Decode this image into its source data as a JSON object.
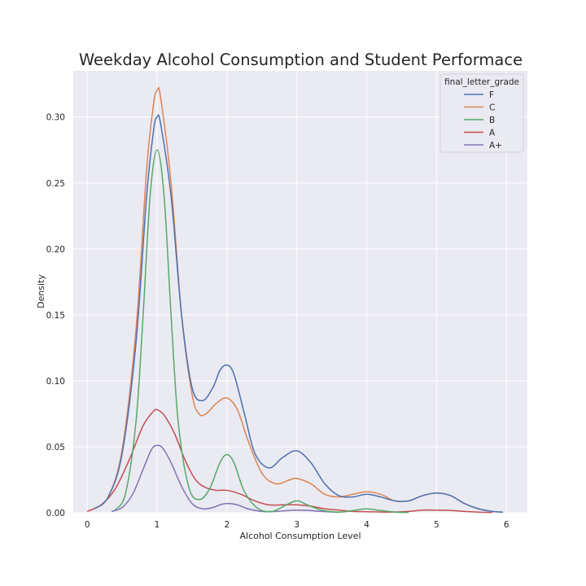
{
  "chart_data": {
    "type": "line",
    "title": "Weekday Alcohol Consumption and Student Performace",
    "xlabel": "Alcohol Consumption Level",
    "ylabel": "Density",
    "xlim": [
      -0.2,
      6.3
    ],
    "ylim": [
      0,
      0.335
    ],
    "x_ticks": [
      "0",
      "1",
      "2",
      "3",
      "4",
      "5",
      "6"
    ],
    "y_ticks": [
      "0.00",
      "0.05",
      "0.10",
      "0.15",
      "0.20",
      "0.25",
      "0.30"
    ],
    "grid": true,
    "legend": {
      "title": "final_letter_grade",
      "placement": "top-right"
    },
    "series": [
      {
        "name": "F",
        "color": "#4c72b0",
        "points": [
          [
            0.1,
            0.003
          ],
          [
            0.3,
            0.012
          ],
          [
            0.5,
            0.045
          ],
          [
            0.7,
            0.13
          ],
          [
            0.85,
            0.24
          ],
          [
            0.95,
            0.29
          ],
          [
            1.0,
            0.3
          ],
          [
            1.05,
            0.295
          ],
          [
            1.2,
            0.24
          ],
          [
            1.35,
            0.15
          ],
          [
            1.5,
            0.095
          ],
          [
            1.65,
            0.085
          ],
          [
            1.8,
            0.095
          ],
          [
            1.9,
            0.108
          ],
          [
            2.0,
            0.112
          ],
          [
            2.1,
            0.105
          ],
          [
            2.25,
            0.075
          ],
          [
            2.4,
            0.045
          ],
          [
            2.6,
            0.034
          ],
          [
            2.8,
            0.042
          ],
          [
            3.0,
            0.047
          ],
          [
            3.2,
            0.038
          ],
          [
            3.4,
            0.022
          ],
          [
            3.6,
            0.013
          ],
          [
            3.8,
            0.012
          ],
          [
            4.0,
            0.014
          ],
          [
            4.2,
            0.012
          ],
          [
            4.4,
            0.009
          ],
          [
            4.6,
            0.009
          ],
          [
            4.8,
            0.013
          ],
          [
            5.0,
            0.015
          ],
          [
            5.2,
            0.013
          ],
          [
            5.4,
            0.007
          ],
          [
            5.6,
            0.003
          ],
          [
            5.8,
            0.001
          ],
          [
            5.95,
            0.0005
          ]
        ]
      },
      {
        "name": "C",
        "color": "#dd8452",
        "points": [
          [
            0.1,
            0.003
          ],
          [
            0.3,
            0.012
          ],
          [
            0.5,
            0.048
          ],
          [
            0.7,
            0.14
          ],
          [
            0.85,
            0.26
          ],
          [
            0.95,
            0.31
          ],
          [
            1.0,
            0.32
          ],
          [
            1.05,
            0.315
          ],
          [
            1.2,
            0.25
          ],
          [
            1.35,
            0.15
          ],
          [
            1.5,
            0.09
          ],
          [
            1.6,
            0.075
          ],
          [
            1.7,
            0.075
          ],
          [
            1.85,
            0.083
          ],
          [
            2.0,
            0.087
          ],
          [
            2.15,
            0.078
          ],
          [
            2.3,
            0.055
          ],
          [
            2.5,
            0.03
          ],
          [
            2.7,
            0.022
          ],
          [
            2.9,
            0.025
          ],
          [
            3.0,
            0.026
          ],
          [
            3.2,
            0.022
          ],
          [
            3.4,
            0.014
          ],
          [
            3.6,
            0.012
          ],
          [
            3.8,
            0.014
          ],
          [
            4.0,
            0.016
          ],
          [
            4.2,
            0.014
          ],
          [
            4.4,
            0.009
          ],
          [
            4.6,
            0.009
          ],
          [
            4.8,
            0.013
          ],
          [
            5.0,
            0.015
          ],
          [
            5.2,
            0.013
          ],
          [
            5.4,
            0.007
          ],
          [
            5.6,
            0.003
          ],
          [
            5.8,
            0.001
          ],
          [
            5.95,
            0.0005
          ]
        ]
      },
      {
        "name": "B",
        "color": "#55a868",
        "points": [
          [
            0.4,
            0.002
          ],
          [
            0.55,
            0.015
          ],
          [
            0.7,
            0.07
          ],
          [
            0.8,
            0.15
          ],
          [
            0.9,
            0.24
          ],
          [
            1.0,
            0.275
          ],
          [
            1.1,
            0.24
          ],
          [
            1.2,
            0.15
          ],
          [
            1.3,
            0.07
          ],
          [
            1.45,
            0.02
          ],
          [
            1.6,
            0.01
          ],
          [
            1.75,
            0.018
          ],
          [
            1.9,
            0.038
          ],
          [
            2.0,
            0.044
          ],
          [
            2.1,
            0.038
          ],
          [
            2.25,
            0.016
          ],
          [
            2.45,
            0.003
          ],
          [
            2.65,
            0.001
          ],
          [
            2.85,
            0.006
          ],
          [
            3.0,
            0.009
          ],
          [
            3.15,
            0.006
          ],
          [
            3.35,
            0.002
          ],
          [
            3.6,
            0.0005
          ],
          [
            3.85,
            0.002
          ],
          [
            4.0,
            0.003
          ],
          [
            4.15,
            0.002
          ],
          [
            4.4,
            0.0005
          ],
          [
            4.6,
            0.0002
          ]
        ]
      },
      {
        "name": "A",
        "color": "#c44e52",
        "points": [
          [
            0.0,
            0.001
          ],
          [
            0.2,
            0.006
          ],
          [
            0.4,
            0.018
          ],
          [
            0.6,
            0.04
          ],
          [
            0.8,
            0.066
          ],
          [
            0.95,
            0.077
          ],
          [
            1.0,
            0.078
          ],
          [
            1.1,
            0.074
          ],
          [
            1.25,
            0.06
          ],
          [
            1.4,
            0.04
          ],
          [
            1.55,
            0.025
          ],
          [
            1.7,
            0.019
          ],
          [
            1.85,
            0.017
          ],
          [
            2.0,
            0.017
          ],
          [
            2.2,
            0.014
          ],
          [
            2.4,
            0.009
          ],
          [
            2.6,
            0.006
          ],
          [
            2.8,
            0.006
          ],
          [
            3.0,
            0.006
          ],
          [
            3.2,
            0.005
          ],
          [
            3.4,
            0.003
          ],
          [
            3.6,
            0.002
          ],
          [
            3.8,
            0.001
          ],
          [
            4.0,
            0.0008
          ],
          [
            4.3,
            0.0005
          ],
          [
            4.6,
            0.001
          ],
          [
            4.8,
            0.002
          ],
          [
            5.0,
            0.002
          ],
          [
            5.2,
            0.0018
          ],
          [
            5.4,
            0.001
          ],
          [
            5.6,
            0.0005
          ],
          [
            5.8,
            0.0002
          ]
        ]
      },
      {
        "name": "A+",
        "color": "#8172b3",
        "points": [
          [
            0.35,
            0.001
          ],
          [
            0.5,
            0.004
          ],
          [
            0.65,
            0.014
          ],
          [
            0.8,
            0.033
          ],
          [
            0.92,
            0.048
          ],
          [
            1.0,
            0.051
          ],
          [
            1.08,
            0.049
          ],
          [
            1.2,
            0.038
          ],
          [
            1.35,
            0.02
          ],
          [
            1.5,
            0.007
          ],
          [
            1.65,
            0.003
          ],
          [
            1.8,
            0.004
          ],
          [
            1.9,
            0.006
          ],
          [
            2.0,
            0.007
          ],
          [
            2.15,
            0.006
          ],
          [
            2.3,
            0.003
          ],
          [
            2.5,
            0.001
          ],
          [
            2.7,
            0.001
          ],
          [
            2.9,
            0.0018
          ],
          [
            3.0,
            0.002
          ],
          [
            3.15,
            0.0018
          ],
          [
            3.35,
            0.001
          ],
          [
            3.6,
            0.0003
          ]
        ]
      }
    ]
  }
}
